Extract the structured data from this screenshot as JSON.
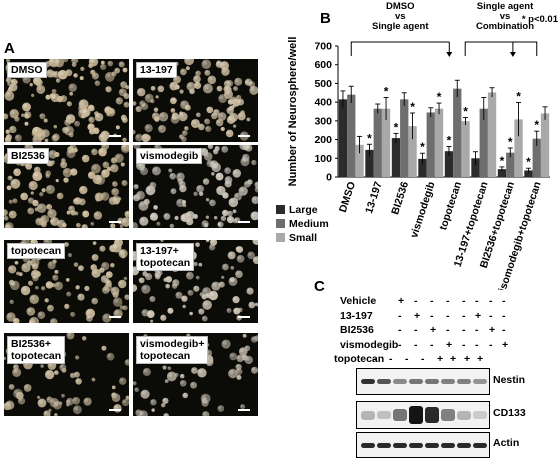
{
  "panel_a": {
    "label": "A",
    "tiles": [
      {
        "label": "DMSO",
        "density": 0.75,
        "tone": "#c9b898"
      },
      {
        "label": "13-197",
        "density": 0.6,
        "tone": "#cbbba0"
      },
      {
        "label": "BI2536",
        "density": 0.65,
        "tone": "#c6b594"
      },
      {
        "label": "vismodegib",
        "density": 0.55,
        "tone": "#c7c0b3"
      },
      {
        "label": "topotecan",
        "density": 0.55,
        "tone": "#c4b596"
      },
      {
        "label": "13-197+\ntopotecan",
        "density": 0.5,
        "tone": "#c9bfae"
      },
      {
        "label": "BI2536+\ntopotecan",
        "density": 0.35,
        "tone": "#b9aa8e"
      },
      {
        "label": "vismodegib+\ntopotecan",
        "density": 0.35,
        "tone": "#bdb3a3"
      }
    ]
  },
  "panel_b": {
    "label": "B",
    "annotation_left": "DMSO\nvs\nSingle agent",
    "annotation_right": "Single  agent\nvs\nCombination",
    "pvalue_note": "* p<0.01",
    "star": "*"
  },
  "chart_data": {
    "type": "bar",
    "ylabel": "Number of Neurosphere/well",
    "ylim": [
      0,
      700
    ],
    "yticks": [
      0,
      100,
      200,
      300,
      400,
      500,
      600,
      700
    ],
    "categories": [
      "DMSO",
      "13-197",
      "BI2536",
      "vismodegib",
      "topotecan",
      "13-197+topotecan",
      "BI2536+topotecan",
      "visomodegib+topotecan"
    ],
    "series": [
      {
        "name": "Large",
        "color": "#2b2b2b",
        "values": [
          415,
          145,
          208,
          97,
          138,
          100,
          42,
          35
        ],
        "errors": [
          45,
          30,
          25,
          30,
          25,
          35,
          12,
          12
        ]
      },
      {
        "name": "Medium",
        "color": "#6e6e6e",
        "values": [
          440,
          365,
          415,
          345,
          472,
          365,
          130,
          205
        ],
        "errors": [
          45,
          25,
          35,
          25,
          45,
          60,
          25,
          40
        ]
      },
      {
        "name": "Small",
        "color": "#a9a9a9",
        "values": [
          172,
          365,
          272,
          365,
          298,
          452,
          308,
          340
        ],
        "errors": [
          45,
          60,
          70,
          30,
          20,
          25,
          90,
          35
        ]
      }
    ],
    "significant": [
      [
        false,
        true,
        true,
        true,
        true,
        false,
        true,
        true
      ],
      [
        false,
        false,
        false,
        false,
        false,
        false,
        true,
        true
      ],
      [
        false,
        true,
        true,
        true,
        true,
        false,
        true,
        false
      ]
    ],
    "legend_position": "bottom-left"
  },
  "panel_c": {
    "label": "C",
    "treatments": [
      {
        "name": "Vehicle",
        "marks": [
          "+",
          "-",
          "-",
          "-",
          "-",
          "-",
          "-",
          "-"
        ]
      },
      {
        "name": "13-197",
        "marks": [
          "-",
          "+",
          "-",
          "-",
          "-",
          "+",
          "-",
          "-"
        ]
      },
      {
        "name": "BI2536",
        "marks": [
          "-",
          "-",
          "+",
          "-",
          "-",
          "-",
          "+",
          "-"
        ]
      },
      {
        "name": "vismodegib",
        "marks": [
          "-",
          "-",
          "-",
          "+",
          "-",
          "-",
          "-",
          "+"
        ]
      },
      {
        "name": "topotecan",
        "marks": [
          "-",
          "-",
          "-",
          "-",
          "+",
          "+",
          "+",
          "+"
        ]
      }
    ],
    "blots": [
      {
        "name": "Nestin",
        "intensities": [
          0.85,
          0.7,
          0.45,
          0.55,
          0.55,
          0.5,
          0.5,
          0.4
        ]
      },
      {
        "name": "CD133",
        "intensities": [
          0.25,
          0.2,
          0.55,
          1.0,
          0.9,
          0.5,
          0.25,
          0.15
        ]
      },
      {
        "name": "Actin",
        "intensities": [
          0.9,
          0.9,
          0.9,
          0.9,
          0.9,
          0.9,
          0.9,
          0.9
        ]
      }
    ]
  }
}
